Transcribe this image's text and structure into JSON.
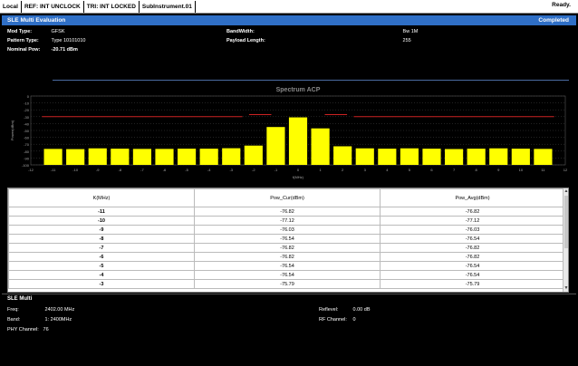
{
  "statusbar": {
    "local": "Local",
    "ref": "REF:  INT  UNCLOCK",
    "trig": "TRI:  INT  LOCKED",
    "instrument": "SubInstrument.01",
    "ready": "Ready."
  },
  "panel": {
    "title": "SLE Multi Evaluation",
    "status": "Completed"
  },
  "info": {
    "mod_type_label": "Mod Type:",
    "mod_type_value": "GFSK",
    "pattern_type_label": "Pattern Type:",
    "pattern_type_value": "Type 10101010",
    "nominal_pow_label": "Nominal Pow:",
    "nominal_pow_value": "-20.71 dBm",
    "bandwidth_label": "BandWidth:",
    "bandwidth_value": "Bw 1M",
    "payload_length_label": "Payload Length:",
    "payload_length_value": "255"
  },
  "chart_data": {
    "type": "bar",
    "title": "Spectrum ACP",
    "xlabel": "f(MHz)",
    "ylabel": "Power(dBm)",
    "xlim": [
      -12,
      12
    ],
    "ylim": [
      -100,
      0
    ],
    "xticks": [
      -12,
      -11,
      -10,
      -9,
      -8,
      -7,
      -6,
      -5,
      -4,
      -3,
      -2,
      -1,
      0,
      1,
      2,
      3,
      4,
      5,
      6,
      7,
      8,
      9,
      10,
      11,
      12
    ],
    "yticks": [
      0,
      -10,
      -20,
      -30,
      -40,
      -50,
      -60,
      -70,
      -80,
      -90,
      -100
    ],
    "x": [
      -11,
      -10,
      -9,
      -8,
      -7,
      -6,
      -5,
      -4,
      -3,
      -2,
      -1,
      0,
      1,
      2,
      3,
      4,
      5,
      6,
      7,
      8,
      9,
      10,
      11
    ],
    "values": [
      -76.8,
      -77.1,
      -76.0,
      -76.5,
      -76.8,
      -76.8,
      -76.5,
      -76.5,
      -75.8,
      -72.0,
      -45.0,
      -31.0,
      -47.0,
      -73.0,
      -76.0,
      -76.5,
      -76.0,
      -76.5,
      -77.0,
      -76.5,
      -76.0,
      -76.5,
      -76.8
    ],
    "limit_lines": [
      {
        "x": [
          -11.5,
          -2.5
        ],
        "y": -30
      },
      {
        "x": [
          -2.2,
          -1.2
        ],
        "y": -27
      },
      {
        "x": [
          1.2,
          2.2
        ],
        "y": -27
      },
      {
        "x": [
          2.5,
          11.5
        ],
        "y": -30
      }
    ],
    "colors": {
      "bar": "#ffff00",
      "limit": "#cc2222",
      "grid": "#555555",
      "axis_text": "#aaaaaa"
    }
  },
  "table": {
    "headers": [
      "K(MHz)",
      "Pow_Cur(dBm)",
      "Pow_Avg(dBm)"
    ],
    "rows": [
      [
        "-11",
        "-76.82",
        "-76.82"
      ],
      [
        "-10",
        "-77.12",
        "-77.12"
      ],
      [
        "-9",
        "-76.03",
        "-76.03"
      ],
      [
        "-8",
        "-76.54",
        "-76.54"
      ],
      [
        "-7",
        "-76.82",
        "-76.82"
      ],
      [
        "-6",
        "-76.82",
        "-76.82"
      ],
      [
        "-5",
        "-76.54",
        "-76.54"
      ],
      [
        "-4",
        "-76.54",
        "-76.54"
      ],
      [
        "-3",
        "-75.79",
        "-75.79"
      ]
    ]
  },
  "bottom": {
    "title": "SLE Multi",
    "freq_label": "Freq:",
    "freq_value": "2402.00 MHz",
    "band_label": "Band:",
    "band_value": "1: 2400MHz",
    "phy_channel_label": "PHY Channel:",
    "phy_channel_value": "76",
    "reflevel_label": "Reflevel:",
    "reflevel_value": "0.00 dB",
    "rf_channel_label": "RF Channel:",
    "rf_channel_value": "0"
  }
}
